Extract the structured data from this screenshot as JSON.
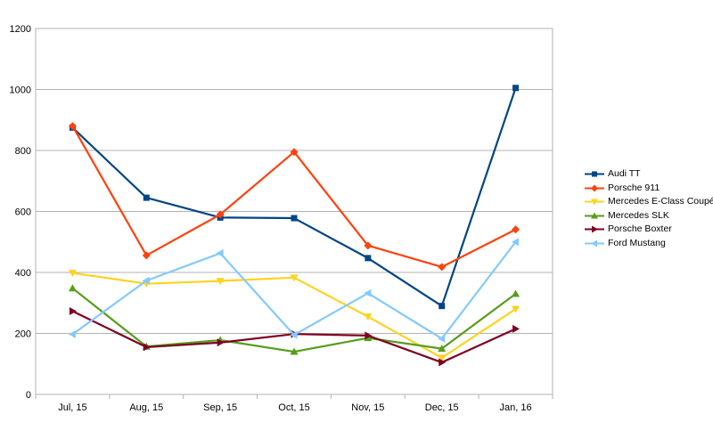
{
  "chart_data": {
    "type": "line",
    "title": "",
    "xlabel": "",
    "ylabel": "",
    "categories": [
      "Jul, 15",
      "Aug, 15",
      "Sep, 15",
      "Oct, 15",
      "Nov, 15",
      "Dec, 15",
      "Jan, 16"
    ],
    "ylim": [
      0,
      1200
    ],
    "yticks": [
      0,
      200,
      400,
      600,
      800,
      1000,
      1200
    ],
    "grid": "horizontal",
    "legend_position": "right",
    "series": [
      {
        "name": "Audi TT",
        "color": "#004586",
        "marker": "square",
        "values": [
          875,
          645,
          580,
          578,
          447,
          290,
          1005
        ]
      },
      {
        "name": "Porsche 911",
        "color": "#ff420e",
        "marker": "diamond",
        "values": [
          880,
          456,
          590,
          795,
          488,
          418,
          541
        ]
      },
      {
        "name": "Mercedes E-Class Coupé",
        "color": "#ffd320",
        "marker": "triangle-down",
        "values": [
          398,
          363,
          372,
          383,
          255,
          120,
          280
        ]
      },
      {
        "name": "Mercedes SLK",
        "color": "#579d1c",
        "marker": "triangle-up",
        "values": [
          348,
          157,
          178,
          140,
          185,
          150,
          330
        ]
      },
      {
        "name": "Porsche Boxter",
        "color": "#7e0021",
        "marker": "triangle-right",
        "values": [
          273,
          155,
          170,
          198,
          193,
          105,
          215
        ]
      },
      {
        "name": "Ford Mustang",
        "color": "#83caff",
        "marker": "triangle-left",
        "values": [
          197,
          373,
          463,
          195,
          332,
          183,
          500
        ]
      }
    ]
  }
}
